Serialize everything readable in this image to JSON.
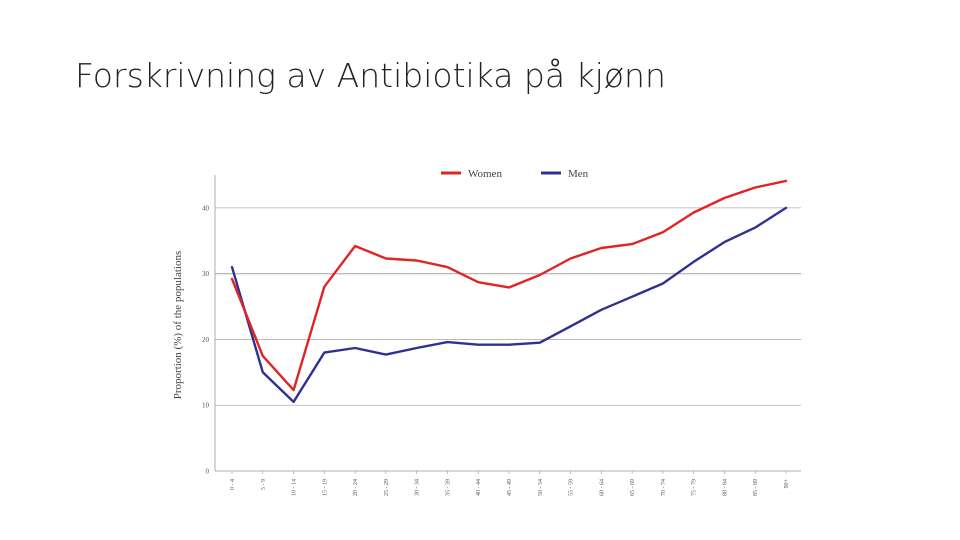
{
  "slide": {
    "title": "Forskrivning av Antibiotika på kjønn"
  },
  "chart_data": {
    "type": "line",
    "ylabel": "Proportion (%) of the populations",
    "xlabel": "",
    "ylim": [
      0,
      45
    ],
    "yticks": [
      0,
      10,
      20,
      30,
      40
    ],
    "grid": "horizontal",
    "legend_position": "top-center",
    "categories": [
      "0 - 4",
      "5 - 9",
      "10 - 14",
      "15 - 19",
      "20 - 24",
      "25 - 29",
      "30 - 34",
      "35 - 39",
      "40 - 44",
      "45 - 49",
      "50 - 54",
      "55 - 59",
      "60 - 64",
      "65 - 69",
      "70 - 74",
      "75 - 79",
      "80 - 84",
      "85 - 89",
      "90+"
    ],
    "series": [
      {
        "name": "Women",
        "color": "#e02424",
        "values": [
          29.2,
          17.5,
          12.3,
          28.0,
          34.2,
          32.3,
          32.0,
          31.0,
          28.7,
          27.9,
          29.8,
          32.3,
          33.9,
          34.5,
          36.3,
          39.3,
          41.5,
          43.1,
          44.1
        ]
      },
      {
        "name": "Men",
        "color": "#2e3192",
        "values": [
          31.0,
          15.0,
          10.5,
          18.0,
          18.7,
          17.7,
          18.7,
          19.6,
          19.2,
          19.2,
          19.5,
          22.0,
          24.5,
          26.5,
          28.5,
          31.8,
          34.8,
          37.0,
          40.0
        ]
      }
    ]
  }
}
